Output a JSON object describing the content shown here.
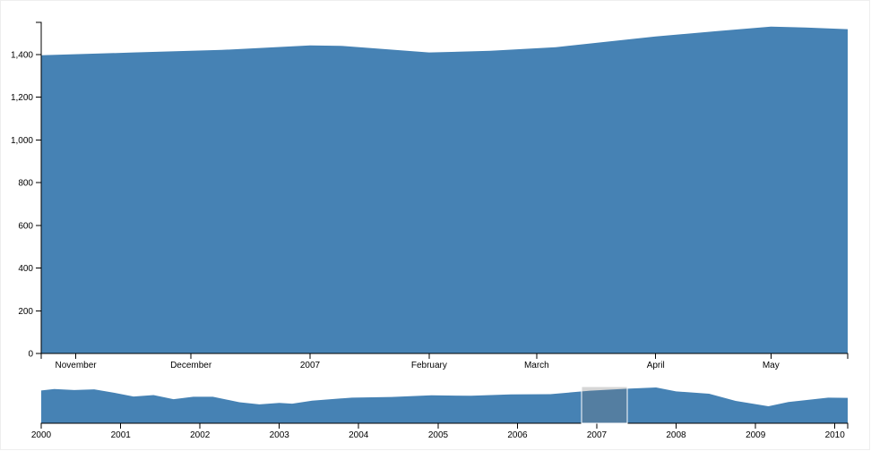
{
  "chart_data": [
    {
      "type": "area",
      "color": "steelblue",
      "x": [
        "2006-10-23",
        "2006-11-16",
        "2006-12-09",
        "2007-01-01",
        "2007-01-09",
        "2007-02-01",
        "2007-02-17",
        "2007-03-06",
        "2007-04-01",
        "2007-04-17",
        "2007-05-01",
        "2007-05-10",
        "2007-05-21"
      ],
      "values": [
        1396,
        1409,
        1421,
        1442,
        1440,
        1409,
        1417,
        1434,
        1484,
        1509,
        1530,
        1526,
        1518
      ],
      "xlim": [
        "2006-10-23",
        "2007-05-21"
      ],
      "xticks": [
        {
          "value": "2006-11-01",
          "label": "November"
        },
        {
          "value": "2006-12-01",
          "label": "December"
        },
        {
          "value": "2007-01-01",
          "label": "2007"
        },
        {
          "value": "2007-02-01",
          "label": "February"
        },
        {
          "value": "2007-03-01",
          "label": "March"
        },
        {
          "value": "2007-04-01",
          "label": "April"
        },
        {
          "value": "2007-05-01",
          "label": "May"
        }
      ],
      "ylim": [
        0,
        1550
      ],
      "yticks": [
        0,
        200,
        400,
        600,
        800,
        {
          "value": 1000,
          "label": "1,000"
        },
        {
          "value": 1200,
          "label": "1,200"
        },
        {
          "value": 1400,
          "label": "1,400"
        }
      ]
    },
    {
      "type": "area",
      "color": "steelblue",
      "x": [
        "2000-01-01",
        "2000-03-01",
        "2000-06-01",
        "2000-09-01",
        "2000-12-01",
        "2001-03-01",
        "2001-06-01",
        "2001-09-01",
        "2001-12-01",
        "2002-03-01",
        "2002-07-01",
        "2002-10-01",
        "2003-01-01",
        "2003-03-01",
        "2003-06-01",
        "2003-12-01",
        "2004-06-01",
        "2004-12-01",
        "2005-06-01",
        "2005-12-01",
        "2006-06-01",
        "2006-12-01",
        "2007-06-01",
        "2007-10-01",
        "2008-01-01",
        "2008-06-01",
        "2008-10-01",
        "2009-03-01",
        "2009-06-01",
        "2009-12-01",
        "2010-03-01"
      ],
      "values": [
        1420,
        1480,
        1440,
        1470,
        1320,
        1160,
        1220,
        1040,
        1150,
        1150,
        910,
        820,
        880,
        850,
        980,
        1110,
        1140,
        1210,
        1190,
        1250,
        1260,
        1410,
        1500,
        1550,
        1380,
        1280,
        970,
        735,
        920,
        1110,
        1100
      ],
      "xlim": [
        "2000-01-01",
        "2010-03-01"
      ],
      "xticks": [
        {
          "value": "2000-01-01",
          "label": "2000"
        },
        {
          "value": "2001-01-01",
          "label": "2001"
        },
        {
          "value": "2002-01-01",
          "label": "2002"
        },
        {
          "value": "2003-01-01",
          "label": "2003"
        },
        {
          "value": "2004-01-01",
          "label": "2004"
        },
        {
          "value": "2005-01-01",
          "label": "2005"
        },
        {
          "value": "2006-01-01",
          "label": "2006"
        },
        {
          "value": "2007-01-01",
          "label": "2007"
        },
        {
          "value": "2008-01-01",
          "label": "2008"
        },
        {
          "value": "2009-01-01",
          "label": "2009"
        },
        {
          "value": "2010-01-01",
          "label": "2010"
        }
      ],
      "ylim": [
        0,
        1550
      ]
    }
  ]
}
